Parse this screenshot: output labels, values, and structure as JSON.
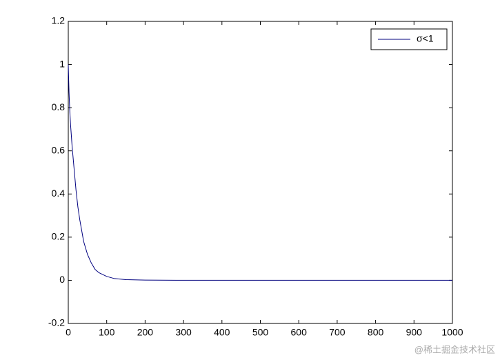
{
  "chart_data": {
    "type": "line",
    "x": [
      0,
      2,
      4,
      6,
      10,
      15,
      20,
      25,
      30,
      40,
      50,
      60,
      70,
      80,
      100,
      120,
      150,
      200,
      300,
      400,
      500,
      600,
      700,
      800,
      900,
      1000
    ],
    "series": [
      {
        "name": "σ<1",
        "color": "#00007f",
        "values": [
          1,
          0.87,
          0.78,
          0.72,
          0.62,
          0.52,
          0.42,
          0.34,
          0.28,
          0.18,
          0.12,
          0.08,
          0.05,
          0.035,
          0.018,
          0.008,
          0.003,
          0.001,
          0,
          0,
          0,
          0,
          0,
          0,
          0,
          0
        ]
      }
    ],
    "xlim": [
      0,
      1000
    ],
    "xticks": [
      0,
      100,
      200,
      300,
      400,
      500,
      600,
      700,
      800,
      900,
      1000
    ],
    "ylim": [
      -0.2,
      1.2
    ],
    "yticks": [
      -0.2,
      0,
      0.2,
      0.4,
      0.6,
      0.8,
      1,
      1.2
    ],
    "grid": false,
    "legend": "upper right"
  },
  "watermark": "@稀土掘金技术社区"
}
